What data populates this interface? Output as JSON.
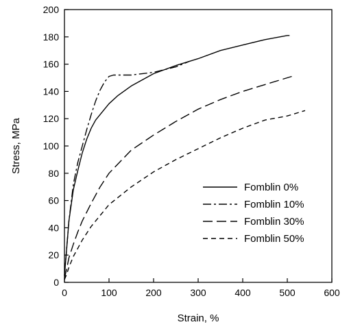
{
  "chart_data": {
    "type": "line",
    "xlabel": "Strain, %",
    "ylabel": "Stress, MPa",
    "xlim": [
      0,
      600
    ],
    "ylim": [
      0,
      200
    ],
    "xticks": [
      0,
      100,
      200,
      300,
      400,
      500,
      600
    ],
    "yticks": [
      0,
      20,
      40,
      60,
      80,
      100,
      120,
      140,
      160,
      180,
      200
    ],
    "grid": false,
    "legend_position": "bottom-right",
    "series": [
      {
        "name": "Fomblin 0%",
        "dash": "solid",
        "x": [
          0,
          5,
          10,
          20,
          30,
          40,
          50,
          60,
          70,
          80,
          100,
          120,
          150,
          200,
          250,
          300,
          350,
          400,
          450,
          500,
          505
        ],
        "y": [
          5,
          25,
          45,
          68,
          82,
          95,
          105,
          113,
          119,
          123,
          131,
          137,
          144,
          153,
          159,
          164,
          170,
          174,
          178,
          181,
          181
        ]
      },
      {
        "name": "Fomblin 10%",
        "dash": "long-short",
        "x": [
          0,
          5,
          10,
          20,
          30,
          40,
          50,
          60,
          70,
          80,
          90,
          100,
          110,
          150,
          200,
          250,
          280
        ],
        "y": [
          5,
          25,
          45,
          72,
          88,
          100,
          112,
          123,
          133,
          141,
          147,
          151,
          152,
          152,
          154,
          158,
          162
        ]
      },
      {
        "name": "Fomblin 30%",
        "dash": "long",
        "x": [
          0,
          5,
          10,
          20,
          30,
          40,
          60,
          80,
          100,
          150,
          200,
          250,
          300,
          350,
          400,
          450,
          500,
          510
        ],
        "y": [
          3,
          10,
          18,
          28,
          37,
          45,
          58,
          70,
          80,
          97,
          108,
          118,
          127,
          134,
          140,
          145,
          150,
          151
        ]
      },
      {
        "name": "Fomblin 50%",
        "dash": "medium",
        "x": [
          0,
          5,
          10,
          20,
          30,
          40,
          60,
          80,
          100,
          150,
          200,
          250,
          300,
          350,
          400,
          450,
          500,
          540
        ],
        "y": [
          2,
          6,
          11,
          19,
          25,
          31,
          41,
          49,
          57,
          70,
          81,
          90,
          98,
          106,
          113,
          119,
          122,
          126
        ]
      }
    ]
  }
}
